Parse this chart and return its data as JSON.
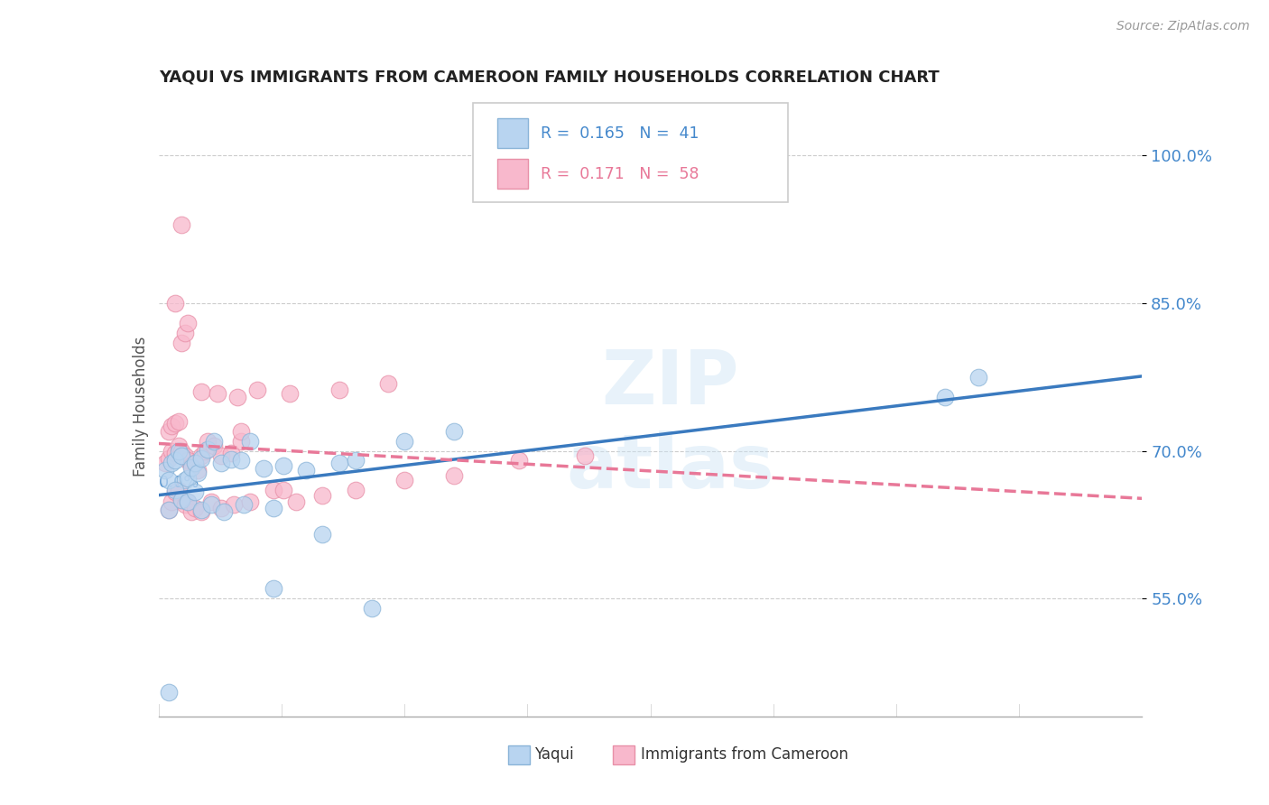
{
  "title": "YAQUI VS IMMIGRANTS FROM CAMEROON FAMILY HOUSEHOLDS CORRELATION CHART",
  "source": "Source: ZipAtlas.com",
  "ylabel": "Family Households",
  "yaxis_ticks": [
    "55.0%",
    "70.0%",
    "85.0%",
    "100.0%"
  ],
  "yaxis_values": [
    0.55,
    0.7,
    0.85,
    1.0
  ],
  "xmin": 0.0,
  "xmax": 0.3,
  "ymin": 0.43,
  "ymax": 1.06,
  "legend_r1": "0.165",
  "legend_n1": "41",
  "legend_r2": "0.171",
  "legend_n2": "58",
  "color_yaqui_fill": "#b8d4f0",
  "color_yaqui_edge": "#8ab4d8",
  "color_cameroon_fill": "#f8b8cc",
  "color_cameroon_edge": "#e890a8",
  "color_yaqui_line": "#3a7abf",
  "color_cameroon_line": "#e87898",
  "yaqui_x": [
    0.002,
    0.003,
    0.004,
    0.005,
    0.006,
    0.007,
    0.008,
    0.009,
    0.01,
    0.011,
    0.012,
    0.013,
    0.015,
    0.017,
    0.019,
    0.022,
    0.025,
    0.028,
    0.032,
    0.038,
    0.045,
    0.055,
    0.06,
    0.075,
    0.09,
    0.003,
    0.005,
    0.007,
    0.009,
    0.011,
    0.013,
    0.016,
    0.02,
    0.026,
    0.035,
    0.05,
    0.24,
    0.25,
    0.035,
    0.065,
    0.003
  ],
  "yaqui_y": [
    0.68,
    0.67,
    0.688,
    0.69,
    0.7,
    0.695,
    0.67,
    0.672,
    0.683,
    0.688,
    0.678,
    0.692,
    0.701,
    0.71,
    0.688,
    0.691,
    0.69,
    0.71,
    0.682,
    0.685,
    0.68,
    0.688,
    0.69,
    0.71,
    0.72,
    0.64,
    0.66,
    0.65,
    0.648,
    0.658,
    0.64,
    0.645,
    0.638,
    0.645,
    0.642,
    0.615,
    0.755,
    0.775,
    0.56,
    0.54,
    0.455
  ],
  "cameroon_x": [
    0.002,
    0.003,
    0.004,
    0.005,
    0.006,
    0.007,
    0.008,
    0.009,
    0.01,
    0.011,
    0.012,
    0.013,
    0.014,
    0.015,
    0.017,
    0.019,
    0.022,
    0.025,
    0.003,
    0.004,
    0.005,
    0.006,
    0.007,
    0.008,
    0.009,
    0.01,
    0.011,
    0.013,
    0.016,
    0.019,
    0.023,
    0.028,
    0.035,
    0.042,
    0.05,
    0.06,
    0.075,
    0.09,
    0.11,
    0.13,
    0.003,
    0.004,
    0.005,
    0.006,
    0.007,
    0.008,
    0.009,
    0.013,
    0.018,
    0.024,
    0.03,
    0.04,
    0.055,
    0.07,
    0.007,
    0.025,
    0.038,
    0.005
  ],
  "cameroon_y": [
    0.688,
    0.692,
    0.7,
    0.698,
    0.705,
    0.7,
    0.695,
    0.69,
    0.685,
    0.688,
    0.68,
    0.695,
    0.7,
    0.71,
    0.705,
    0.695,
    0.698,
    0.71,
    0.64,
    0.648,
    0.658,
    0.66,
    0.65,
    0.645,
    0.648,
    0.638,
    0.642,
    0.638,
    0.648,
    0.642,
    0.645,
    0.648,
    0.66,
    0.648,
    0.655,
    0.66,
    0.67,
    0.675,
    0.69,
    0.695,
    0.72,
    0.725,
    0.728,
    0.73,
    0.81,
    0.82,
    0.83,
    0.76,
    0.758,
    0.755,
    0.762,
    0.758,
    0.762,
    0.768,
    0.93,
    0.72,
    0.66,
    0.85
  ]
}
